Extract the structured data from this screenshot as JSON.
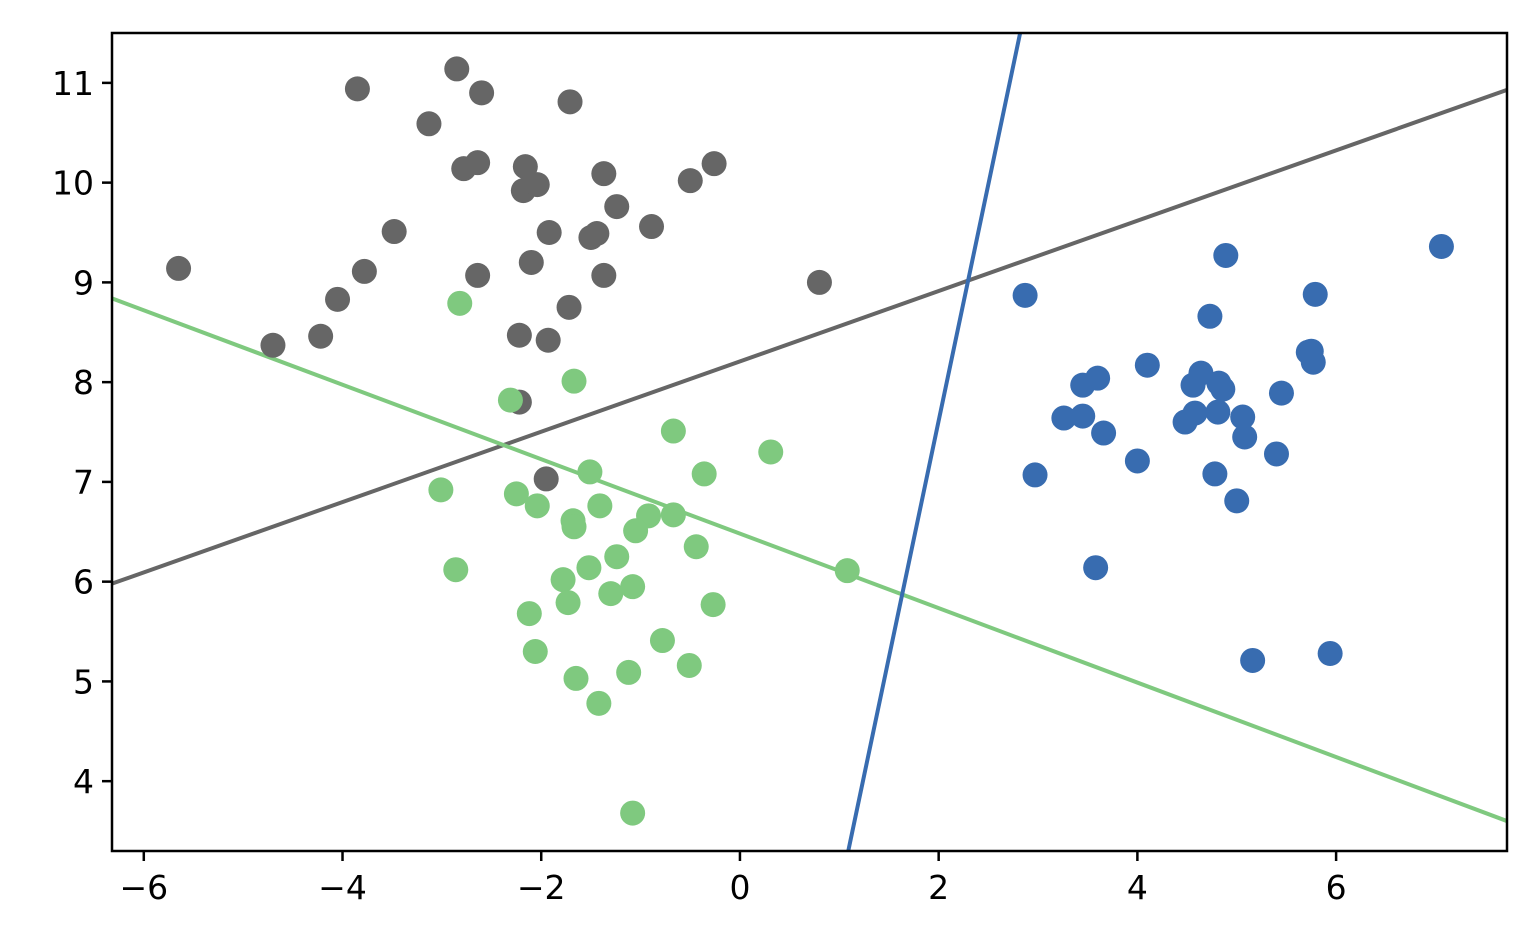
{
  "chart_data": {
    "type": "scatter",
    "title": "",
    "xlabel": "",
    "ylabel": "",
    "xlim": [
      -6.32,
      7.72
    ],
    "ylim": [
      3.3,
      11.5
    ],
    "grid": false,
    "xticks": [
      -6,
      -4,
      -2,
      0,
      2,
      4,
      6
    ],
    "yticks": [
      4,
      5,
      6,
      7,
      8,
      9,
      10,
      11
    ],
    "xtick_labels": [
      "−6",
      "−4",
      "−2",
      "0",
      "2",
      "4",
      "6"
    ],
    "ytick_labels": [
      "4",
      "5",
      "6",
      "7",
      "8",
      "9",
      "10",
      "11"
    ],
    "series": [
      {
        "color": "#666666",
        "points": [
          [
            -5.65,
            9.14
          ],
          [
            -4.7,
            8.37
          ],
          [
            -4.22,
            8.46
          ],
          [
            -4.05,
            8.83
          ],
          [
            -3.78,
            9.11
          ],
          [
            -3.48,
            9.51
          ],
          [
            -3.85,
            10.94
          ],
          [
            -3.13,
            10.59
          ],
          [
            -2.85,
            11.14
          ],
          [
            -2.6,
            10.9
          ],
          [
            -2.78,
            10.14
          ],
          [
            -2.64,
            10.2
          ],
          [
            -2.64,
            9.07
          ],
          [
            -2.16,
            10.16
          ],
          [
            -2.18,
            9.92
          ],
          [
            -2.04,
            9.98
          ],
          [
            -1.92,
            9.5
          ],
          [
            -2.1,
            9.2
          ],
          [
            -1.71,
            10.81
          ],
          [
            -1.37,
            10.09
          ],
          [
            -1.24,
            9.76
          ],
          [
            -1.5,
            9.45
          ],
          [
            -1.44,
            9.49
          ],
          [
            -1.37,
            9.07
          ],
          [
            -0.89,
            9.56
          ],
          [
            -0.5,
            10.02
          ],
          [
            -0.26,
            10.19
          ],
          [
            -1.72,
            8.75
          ],
          [
            -2.22,
            8.47
          ],
          [
            -1.93,
            8.42
          ],
          [
            -2.22,
            7.8
          ],
          [
            -1.95,
            7.03
          ],
          [
            0.8,
            9.0
          ]
        ]
      },
      {
        "color": "#7fc97f",
        "points": [
          [
            -2.82,
            8.79
          ],
          [
            -1.67,
            8.01
          ],
          [
            -2.31,
            7.82
          ],
          [
            -0.67,
            7.51
          ],
          [
            0.31,
            7.3
          ],
          [
            -1.51,
            7.1
          ],
          [
            -0.36,
            7.08
          ],
          [
            -3.01,
            6.92
          ],
          [
            -2.25,
            6.88
          ],
          [
            -2.04,
            6.76
          ],
          [
            -1.41,
            6.76
          ],
          [
            -1.68,
            6.61
          ],
          [
            -1.67,
            6.55
          ],
          [
            -0.92,
            6.66
          ],
          [
            -0.67,
            6.67
          ],
          [
            -1.05,
            6.51
          ],
          [
            -0.44,
            6.35
          ],
          [
            -1.24,
            6.25
          ],
          [
            -1.52,
            6.14
          ],
          [
            -2.86,
            6.12
          ],
          [
            -1.78,
            6.02
          ],
          [
            -1.08,
            5.95
          ],
          [
            -1.3,
            5.88
          ],
          [
            -1.73,
            5.79
          ],
          [
            -0.27,
            5.77
          ],
          [
            -2.12,
            5.68
          ],
          [
            -0.78,
            5.41
          ],
          [
            -2.06,
            5.3
          ],
          [
            -1.12,
            5.09
          ],
          [
            -0.51,
            5.16
          ],
          [
            -1.65,
            5.03
          ],
          [
            -1.42,
            4.78
          ],
          [
            -1.08,
            3.68
          ],
          [
            1.08,
            6.11
          ]
        ]
      },
      {
        "color": "#386cb0",
        "points": [
          [
            2.87,
            8.87
          ],
          [
            4.89,
            9.27
          ],
          [
            7.06,
            9.36
          ],
          [
            5.79,
            8.88
          ],
          [
            4.73,
            8.66
          ],
          [
            5.75,
            8.31
          ],
          [
            5.72,
            8.3
          ],
          [
            5.77,
            8.2
          ],
          [
            4.1,
            8.17
          ],
          [
            3.6,
            8.04
          ],
          [
            3.45,
            7.97
          ],
          [
            4.64,
            8.09
          ],
          [
            4.56,
            7.97
          ],
          [
            4.82,
            7.99
          ],
          [
            4.86,
            7.93
          ],
          [
            5.45,
            7.89
          ],
          [
            3.26,
            7.64
          ],
          [
            3.45,
            7.66
          ],
          [
            4.48,
            7.6
          ],
          [
            4.58,
            7.69
          ],
          [
            4.81,
            7.7
          ],
          [
            5.06,
            7.65
          ],
          [
            3.66,
            7.49
          ],
          [
            5.08,
            7.45
          ],
          [
            5.4,
            7.28
          ],
          [
            4.0,
            7.21
          ],
          [
            2.97,
            7.07
          ],
          [
            4.78,
            7.08
          ],
          [
            5.0,
            6.81
          ],
          [
            3.58,
            6.14
          ],
          [
            5.16,
            5.21
          ],
          [
            5.94,
            5.28
          ]
        ]
      }
    ],
    "lines": [
      {
        "color": "#666666",
        "points": [
          [
            -6.32,
            5.98
          ],
          [
            7.72,
            10.93
          ]
        ]
      },
      {
        "color": "#7fc97f",
        "points": [
          [
            -6.32,
            8.84
          ],
          [
            7.72,
            3.6
          ]
        ]
      },
      {
        "color": "#386cb0",
        "points": [
          [
            1.09,
            3.3
          ],
          [
            2.82,
            11.5
          ]
        ]
      }
    ]
  }
}
